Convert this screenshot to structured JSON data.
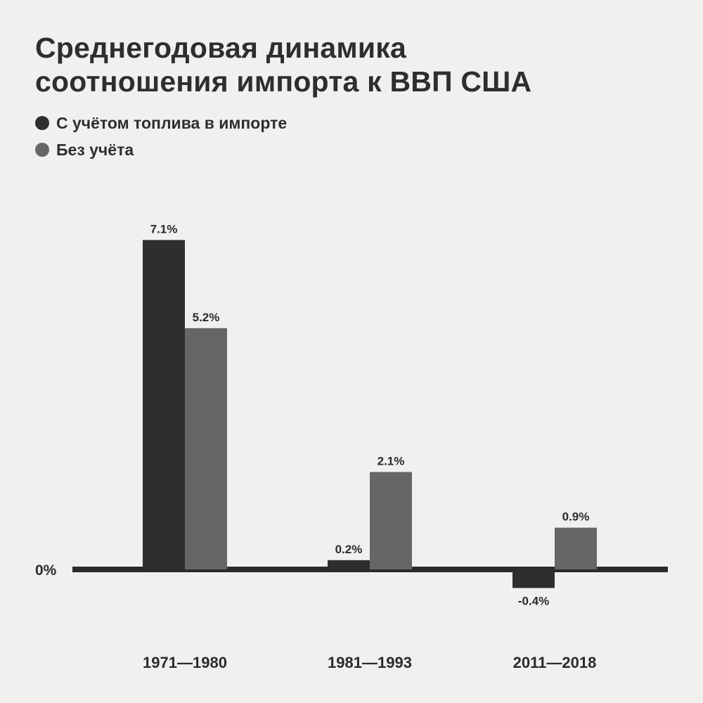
{
  "title_lines": [
    "Среднегодовая динамика",
    "соотношения импорта к ВВП США"
  ],
  "colors": {
    "background": "#f1f0ee",
    "series_dark": "#2e2e2e",
    "series_gray": "#666666",
    "baseline": "#2b2b2b"
  },
  "chart_data": {
    "type": "bar",
    "title": "Среднегодовая динамика соотношения импорта к ВВП США",
    "categories": [
      "1971—1980",
      "1981—1993",
      "2011—2018"
    ],
    "series": [
      {
        "name": "С учётом топлива в импорте",
        "values": [
          7.1,
          0.2,
          -0.4
        ],
        "labels": [
          "7.1%",
          "0.2%",
          "-0.4%"
        ],
        "color": "#2e2e2e"
      },
      {
        "name": "Без учёта",
        "values": [
          5.2,
          2.1,
          0.9
        ],
        "labels": [
          "5.2%",
          "2.1%",
          "0.9%"
        ],
        "color": "#666666"
      }
    ],
    "zero_label": "0%",
    "ylim": [
      -0.4,
      7.1
    ],
    "grid": false,
    "legend_position": "top-left"
  }
}
